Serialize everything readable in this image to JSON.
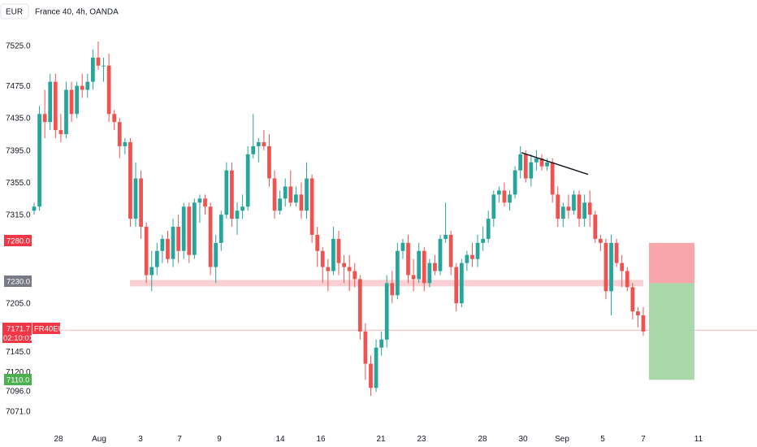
{
  "chart_data": {
    "type": "candlestick",
    "symbol_badge": "EUR",
    "title": "France 40, 4h, OANDA",
    "y_ticks": [
      7525.0,
      7475.0,
      7435.0,
      7395.0,
      7355.0,
      7315.0,
      7205.0,
      7145.0,
      7120.0,
      7096.0,
      7071.0
    ],
    "y_tick_labels": [
      "7525.0",
      "7475.0",
      "7435.0",
      "7395.0",
      "7355.0",
      "7315.0",
      "7205.0",
      "7145.0",
      "7120.0",
      "7096.0",
      "7071.0"
    ],
    "x_tick_labels": [
      "28",
      "Aug",
      "3",
      "7",
      "9",
      "14",
      "16",
      "21",
      "23",
      "28",
      "30",
      "Sep",
      "5",
      "7",
      "11"
    ],
    "price_tags": {
      "target_upper": "7280.0",
      "entry": "7230.0",
      "current": "7171.7",
      "countdown": "02:10:01",
      "symbol": "FR40EUR",
      "target_lower": "7110.0"
    },
    "support_zone": [
      7226.0,
      7234.0
    ],
    "trendline": [
      [
        7392,
        7365
      ]
    ],
    "position_box": {
      "stop": 7280.0,
      "entry": 7230.0,
      "target": 7110.0
    },
    "colors": {
      "up": "#26a69a",
      "down": "#ef5350",
      "zone": "#f8c8cc",
      "risk": "#f7a1a5",
      "reward": "#a5d6a7",
      "current_tag": "#f23645",
      "entry_tag": "#787b86",
      "target_tag": "#4caf50"
    },
    "candles": [
      [
        7320,
        7330,
        7315,
        7325
      ],
      [
        7325,
        7450,
        7320,
        7440
      ],
      [
        7440,
        7470,
        7410,
        7430
      ],
      [
        7430,
        7490,
        7420,
        7480
      ],
      [
        7480,
        7490,
        7410,
        7420
      ],
      [
        7420,
        7440,
        7405,
        7415
      ],
      [
        7415,
        7480,
        7410,
        7470
      ],
      [
        7470,
        7480,
        7430,
        7440
      ],
      [
        7440,
        7480,
        7435,
        7475
      ],
      [
        7475,
        7490,
        7460,
        7470
      ],
      [
        7470,
        7490,
        7460,
        7480
      ],
      [
        7480,
        7520,
        7470,
        7510
      ],
      [
        7510,
        7530,
        7495,
        7500
      ],
      [
        7500,
        7510,
        7480,
        7500
      ],
      [
        7500,
        7515,
        7430,
        7440
      ],
      [
        7440,
        7445,
        7420,
        7430
      ],
      [
        7430,
        7435,
        7385,
        7400
      ],
      [
        7400,
        7410,
        7390,
        7405
      ],
      [
        7405,
        7410,
        7300,
        7310
      ],
      [
        7310,
        7380,
        7300,
        7360
      ],
      [
        7360,
        7370,
        7285,
        7300
      ],
      [
        7300,
        7305,
        7230,
        7240
      ],
      [
        7240,
        7270,
        7220,
        7250
      ],
      [
        7250,
        7280,
        7240,
        7270
      ],
      [
        7270,
        7290,
        7255,
        7285
      ],
      [
        7285,
        7295,
        7255,
        7260
      ],
      [
        7260,
        7310,
        7250,
        7300
      ],
      [
        7300,
        7315,
        7255,
        7270
      ],
      [
        7270,
        7330,
        7260,
        7325
      ],
      [
        7325,
        7330,
        7255,
        7265
      ],
      [
        7265,
        7335,
        7260,
        7330
      ],
      [
        7330,
        7340,
        7305,
        7335
      ],
      [
        7335,
        7340,
        7315,
        7325
      ],
      [
        7325,
        7330,
        7240,
        7250
      ],
      [
        7250,
        7290,
        7230,
        7280
      ],
      [
        7280,
        7320,
        7270,
        7315
      ],
      [
        7315,
        7380,
        7310,
        7370
      ],
      [
        7370,
        7380,
        7300,
        7310
      ],
      [
        7310,
        7330,
        7290,
        7320
      ],
      [
        7320,
        7340,
        7310,
        7325
      ],
      [
        7325,
        7400,
        7320,
        7390
      ],
      [
        7390,
        7440,
        7385,
        7400
      ],
      [
        7400,
        7410,
        7380,
        7405
      ],
      [
        7405,
        7420,
        7395,
        7400
      ],
      [
        7400,
        7415,
        7350,
        7360
      ],
      [
        7360,
        7370,
        7310,
        7320
      ],
      [
        7320,
        7345,
        7315,
        7335
      ],
      [
        7335,
        7360,
        7325,
        7350
      ],
      [
        7350,
        7370,
        7325,
        7330
      ],
      [
        7330,
        7350,
        7325,
        7340
      ],
      [
        7340,
        7355,
        7310,
        7320
      ],
      [
        7320,
        7380,
        7310,
        7360
      ],
      [
        7360,
        7365,
        7280,
        7290
      ],
      [
        7290,
        7300,
        7250,
        7270
      ],
      [
        7270,
        7275,
        7230,
        7250
      ],
      [
        7250,
        7260,
        7220,
        7245
      ],
      [
        7245,
        7300,
        7240,
        7285
      ],
      [
        7285,
        7295,
        7240,
        7255
      ],
      [
        7255,
        7265,
        7230,
        7250
      ],
      [
        7250,
        7265,
        7220,
        7245
      ],
      [
        7245,
        7255,
        7225,
        7235
      ],
      [
        7235,
        7240,
        7160,
        7170
      ],
      [
        7170,
        7180,
        7110,
        7130
      ],
      [
        7130,
        7140,
        7090,
        7100
      ],
      [
        7100,
        7160,
        7095,
        7150
      ],
      [
        7150,
        7170,
        7140,
        7160
      ],
      [
        7160,
        7240,
        7150,
        7230
      ],
      [
        7230,
        7245,
        7205,
        7215
      ],
      [
        7215,
        7280,
        7210,
        7270
      ],
      [
        7270,
        7285,
        7260,
        7280
      ],
      [
        7280,
        7290,
        7230,
        7240
      ],
      [
        7240,
        7260,
        7220,
        7235
      ],
      [
        7235,
        7280,
        7230,
        7270
      ],
      [
        7270,
        7275,
        7220,
        7230
      ],
      [
        7230,
        7260,
        7225,
        7255
      ],
      [
        7255,
        7265,
        7240,
        7245
      ],
      [
        7245,
        7290,
        7240,
        7285
      ],
      [
        7285,
        7330,
        7280,
        7290
      ],
      [
        7290,
        7295,
        7240,
        7250
      ],
      [
        7250,
        7255,
        7195,
        7205
      ],
      [
        7205,
        7260,
        7200,
        7255
      ],
      [
        7255,
        7270,
        7245,
        7265
      ],
      [
        7265,
        7280,
        7250,
        7260
      ],
      [
        7260,
        7290,
        7250,
        7280
      ],
      [
        7280,
        7300,
        7270,
        7285
      ],
      [
        7285,
        7320,
        7280,
        7310
      ],
      [
        7310,
        7345,
        7300,
        7340
      ],
      [
        7340,
        7350,
        7330,
        7345
      ],
      [
        7345,
        7355,
        7325,
        7330
      ],
      [
        7330,
        7345,
        7320,
        7340
      ],
      [
        7340,
        7375,
        7335,
        7370
      ],
      [
        7370,
        7400,
        7360,
        7390
      ],
      [
        7390,
        7395,
        7355,
        7360
      ],
      [
        7360,
        7390,
        7350,
        7380
      ],
      [
        7380,
        7395,
        7370,
        7385
      ],
      [
        7385,
        7390,
        7370,
        7375
      ],
      [
        7375,
        7385,
        7370,
        7380
      ],
      [
        7380,
        7385,
        7330,
        7340
      ],
      [
        7340,
        7350,
        7300,
        7310
      ],
      [
        7310,
        7330,
        7300,
        7325
      ],
      [
        7325,
        7340,
        7310,
        7320
      ],
      [
        7320,
        7345,
        7315,
        7340
      ],
      [
        7340,
        7345,
        7300,
        7310
      ],
      [
        7310,
        7340,
        7300,
        7330
      ],
      [
        7330,
        7345,
        7300,
        7315
      ],
      [
        7315,
        7320,
        7280,
        7285
      ],
      [
        7285,
        7290,
        7270,
        7280
      ],
      [
        7280,
        7285,
        7210,
        7220
      ],
      [
        7220,
        7290,
        7190,
        7280
      ],
      [
        7280,
        7285,
        7250,
        7255
      ],
      [
        7255,
        7265,
        7225,
        7245
      ],
      [
        7245,
        7250,
        7220,
        7225
      ],
      [
        7225,
        7230,
        7185,
        7195
      ],
      [
        7195,
        7200,
        7175,
        7190
      ],
      [
        7190,
        7200,
        7165,
        7170
      ]
    ]
  }
}
